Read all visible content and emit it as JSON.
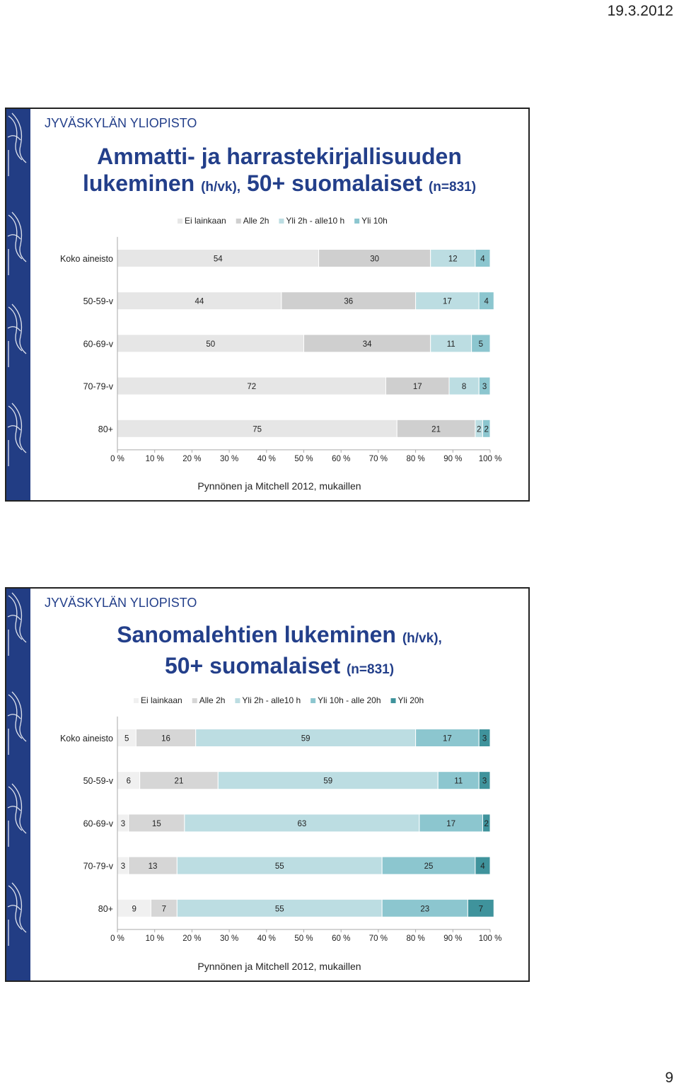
{
  "page": {
    "date": "19.3.2012",
    "number": "9"
  },
  "slides": [
    {
      "university": "JYVÄSKYLÄN YLIOPISTO",
      "title": {
        "line1": "Ammatti- ja harrastekirjallisuuden",
        "line2_main": "lukeminen",
        "line2_unit": "(h/vk),",
        "line2_rest": "50+ suomalaiset",
        "line2_n": "(n=831)"
      },
      "source": "Pynnönen ja Mitchell 2012, mukaillen"
    },
    {
      "university": "JYVÄSKYLÄN YLIOPISTO",
      "title": {
        "line1_main": "Sanomalehtien lukeminen",
        "line1_unit": "(h/vk),",
        "line2_main": "50+ suomalaiset",
        "line2_n": "(n=831)"
      },
      "source": "Pynnönen ja Mitchell 2012, mukaillen"
    }
  ],
  "chart_data": [
    {
      "type": "bar",
      "stacked": true,
      "orientation": "horizontal",
      "categories": [
        "Koko aineisto",
        "50-59-v",
        "60-69-v",
        "70-79-v",
        "80+"
      ],
      "series": [
        {
          "name": "Ei lainkaan",
          "color": "#e6e6e6",
          "values": [
            54,
            44,
            50,
            72,
            75
          ]
        },
        {
          "name": "Alle 2h",
          "color": "#cfcfcf",
          "values": [
            30,
            36,
            34,
            17,
            21
          ]
        },
        {
          "name": "Yli 2h - alle10 h",
          "color": "#bcdde2",
          "values": [
            12,
            17,
            11,
            8,
            2
          ]
        },
        {
          "name": "Yli 10h",
          "color": "#8cc6cf",
          "values": [
            4,
            4,
            5,
            3,
            2
          ]
        }
      ],
      "x_ticks": [
        "0 %",
        "10 %",
        "20 %",
        "30 %",
        "40 %",
        "50 %",
        "60 %",
        "70 %",
        "80 %",
        "90 %",
        "100 %"
      ],
      "xlim": [
        0,
        100
      ],
      "legend": "top",
      "grid": false
    },
    {
      "type": "bar",
      "stacked": true,
      "orientation": "horizontal",
      "categories": [
        "Koko aineisto",
        "50-59-v",
        "60-69-v",
        "70-79-v",
        "80+"
      ],
      "series": [
        {
          "name": "Ei lainkaan",
          "color": "#f0f0f0",
          "values": [
            5,
            6,
            3,
            3,
            9
          ]
        },
        {
          "name": "Alle 2h",
          "color": "#d6d6d6",
          "values": [
            16,
            21,
            15,
            13,
            7
          ]
        },
        {
          "name": "Yli 2h - alle10 h",
          "color": "#bcdde2",
          "values": [
            59,
            59,
            63,
            55,
            55
          ]
        },
        {
          "name": "Yli 10h - alle 20h",
          "color": "#8cc6cf",
          "values": [
            17,
            11,
            17,
            25,
            23
          ]
        },
        {
          "name": "Yli 20h",
          "color": "#3f939c",
          "values": [
            3,
            3,
            2,
            4,
            7
          ]
        }
      ],
      "x_ticks": [
        "0 %",
        "10 %",
        "20 %",
        "30 %",
        "40 %",
        "50 %",
        "60 %",
        "70 %",
        "80 %",
        "90 %",
        "100 %"
      ],
      "xlim": [
        0,
        100
      ],
      "legend": "top",
      "grid": false
    }
  ]
}
